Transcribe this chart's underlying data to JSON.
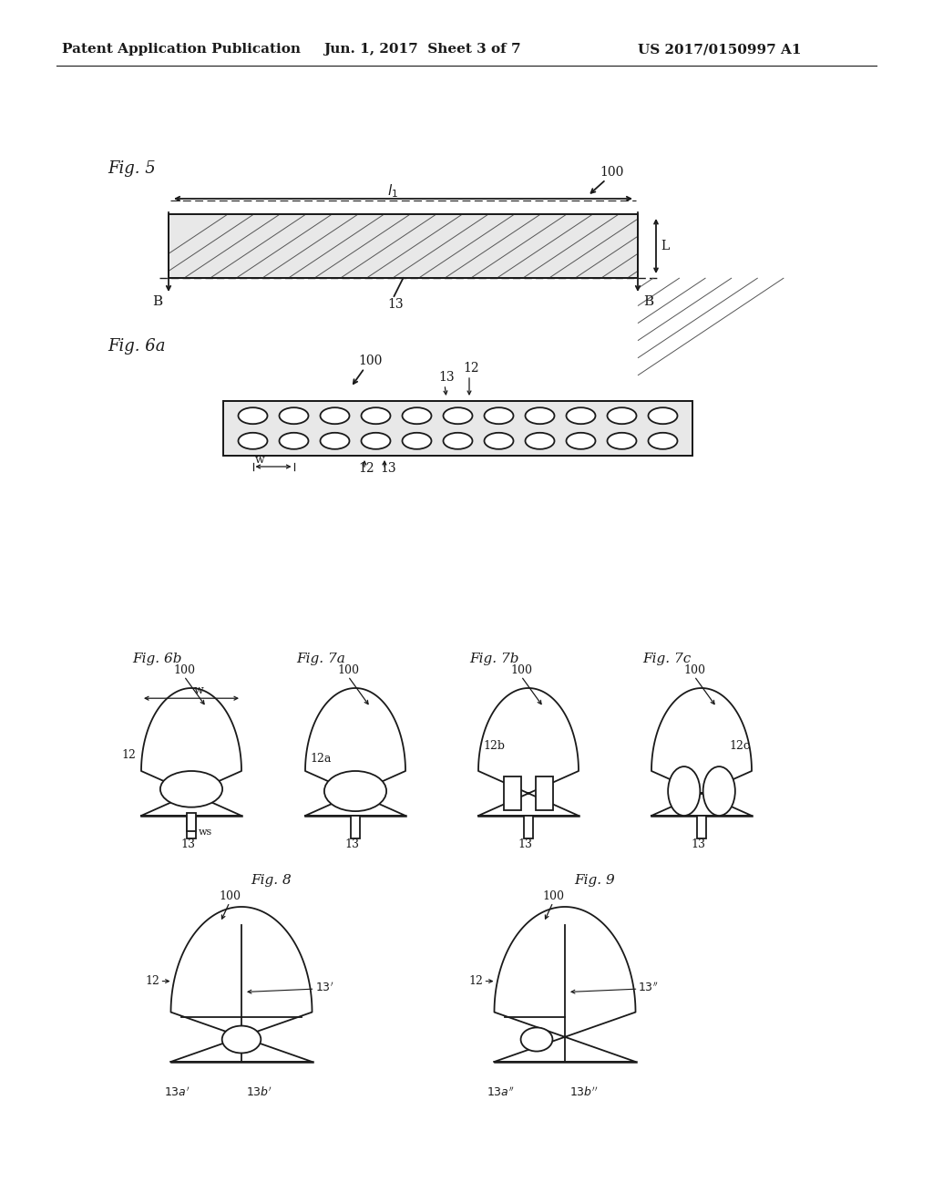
{
  "bg_color": "#ffffff",
  "line_color": "#1a1a1a",
  "header_left": "Patent Application Publication",
  "header_center": "Jun. 1, 2017  Sheet 3 of 7",
  "header_right": "US 2017/0150997 A1",
  "fig5_label": "Fig. 5",
  "fig6a_label": "Fig. 6a",
  "fig6b_label": "Fig. 6b",
  "fig7a_label": "Fig. 7a",
  "fig7b_label": "Fig. 7b",
  "fig7c_label": "Fig. 7c",
  "fig8_label": "Fig. 8",
  "fig9_label": "Fig. 9"
}
